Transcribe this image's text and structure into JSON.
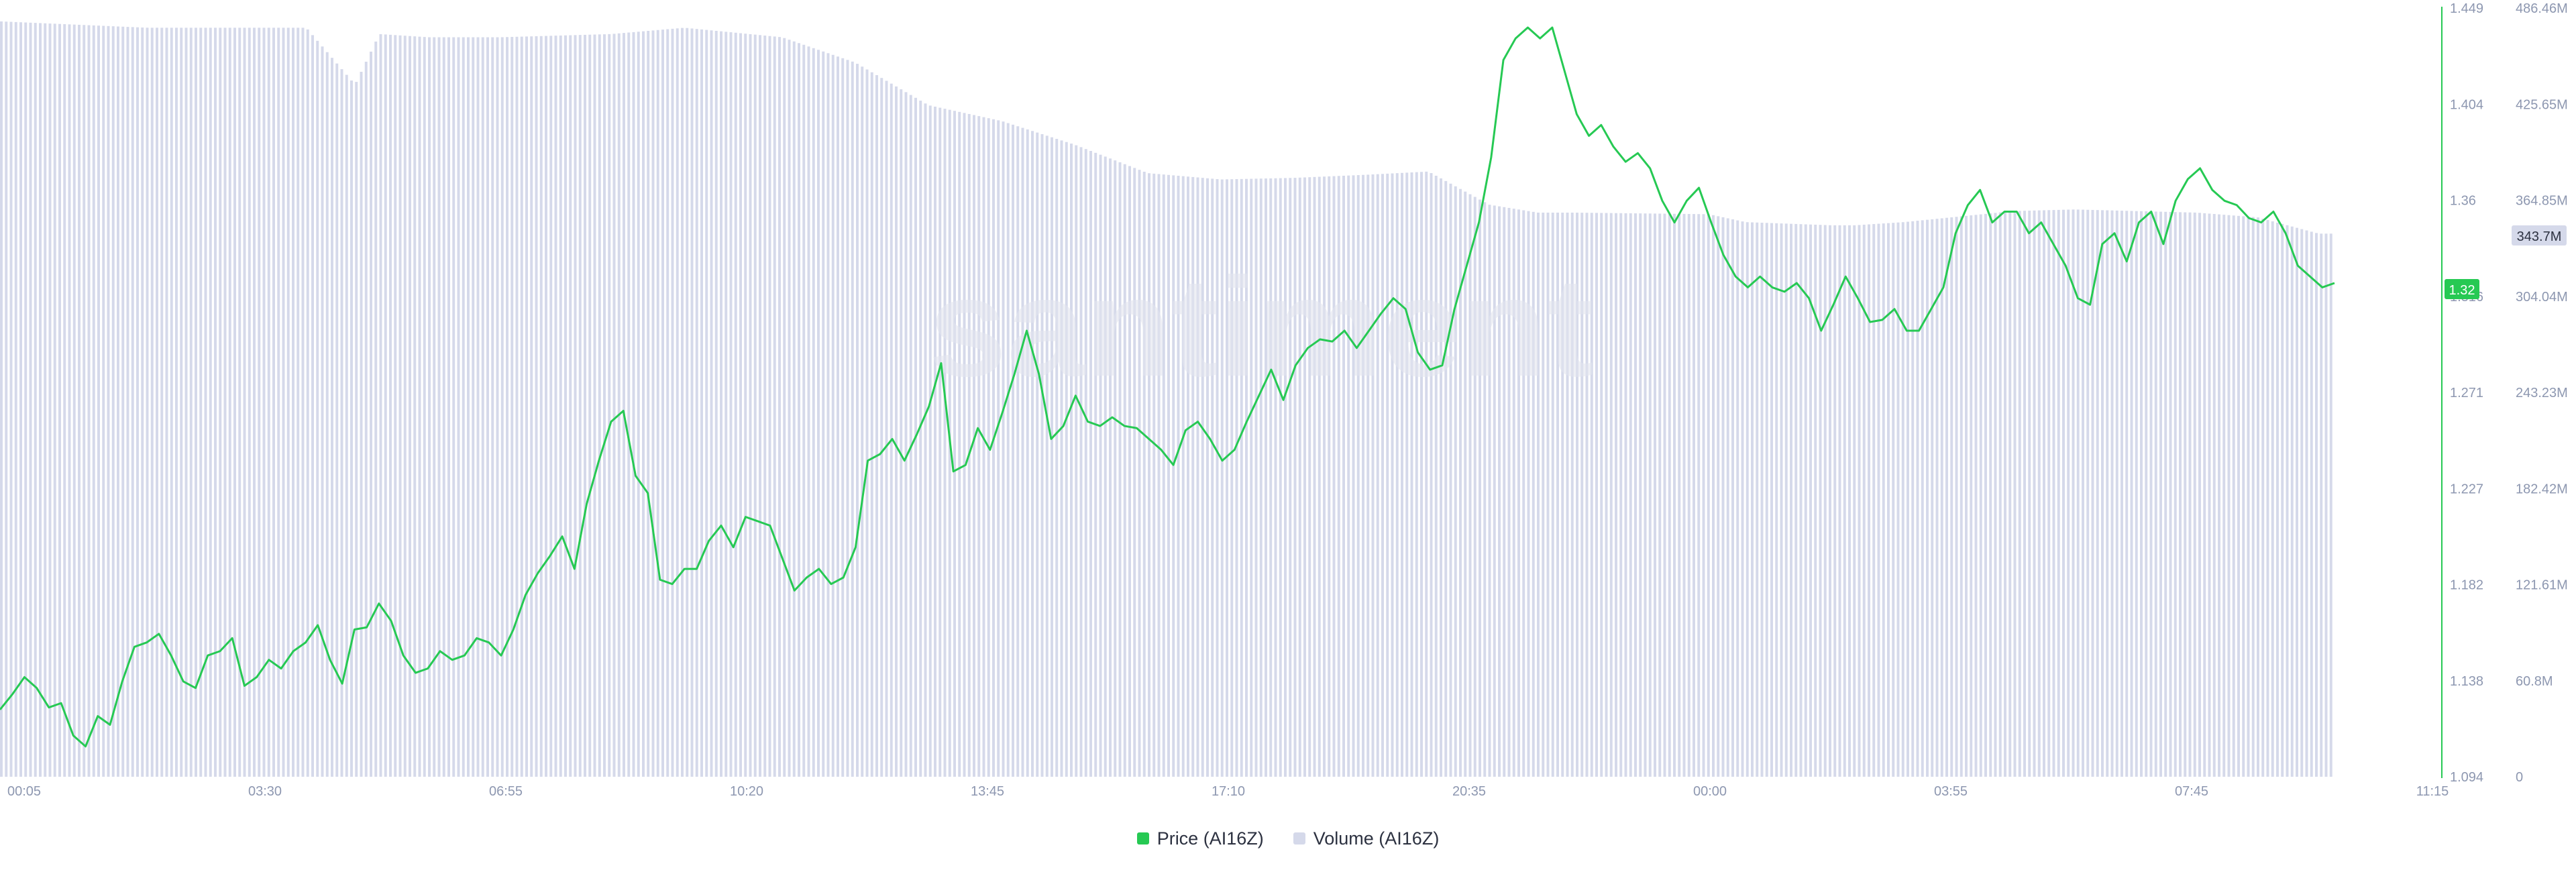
{
  "chart_data": {
    "type": "line",
    "title": "",
    "watermark": "santiment",
    "x_ticks": [
      "00:05",
      "03:30",
      "06:55",
      "10:20",
      "13:45",
      "17:10",
      "20:35",
      "00:00",
      "03:55",
      "07:45",
      "11:15"
    ],
    "left_axis": {
      "label": "Price (AI16Z)",
      "ticks": [
        "1.449",
        "1.404",
        "1.36",
        "1.316",
        "1.271",
        "1.227",
        "1.182",
        "1.138",
        "1.094"
      ],
      "ylim": [
        1.094,
        1.449
      ]
    },
    "right_axis": {
      "label": "Volume (AI16Z)",
      "ticks": [
        "486.46M",
        "425.65M",
        "364.85M",
        "304.04M",
        "243.23M",
        "182.42M",
        "121.61M",
        "60.8M",
        "0"
      ],
      "ylim": [
        0,
        486.46
      ]
    },
    "current_price_label": "1.32",
    "current_volume_label": "343.7M",
    "grid": false,
    "legend_position": "bottom-center",
    "series": [
      {
        "name": "Price (AI16Z)",
        "type": "line",
        "color": "#26c953",
        "points": [
          [
            0,
            1.125
          ],
          [
            1,
            1.132
          ],
          [
            2,
            1.14
          ],
          [
            3,
            1.135
          ],
          [
            4,
            1.126
          ],
          [
            5,
            1.128
          ],
          [
            6,
            1.113
          ],
          [
            7,
            1.108
          ],
          [
            8,
            1.122
          ],
          [
            9,
            1.118
          ],
          [
            10,
            1.138
          ],
          [
            11,
            1.154
          ],
          [
            12,
            1.156
          ],
          [
            13,
            1.16
          ],
          [
            14,
            1.15
          ],
          [
            15,
            1.138
          ],
          [
            16,
            1.135
          ],
          [
            17,
            1.15
          ],
          [
            18,
            1.152
          ],
          [
            19,
            1.158
          ],
          [
            20,
            1.136
          ],
          [
            21,
            1.14
          ],
          [
            22,
            1.148
          ],
          [
            23,
            1.144
          ],
          [
            24,
            1.152
          ],
          [
            25,
            1.156
          ],
          [
            26,
            1.164
          ],
          [
            27,
            1.148
          ],
          [
            28,
            1.137
          ],
          [
            29,
            1.162
          ],
          [
            30,
            1.163
          ],
          [
            31,
            1.174
          ],
          [
            32,
            1.166
          ],
          [
            33,
            1.15
          ],
          [
            34,
            1.142
          ],
          [
            35,
            1.144
          ],
          [
            36,
            1.152
          ],
          [
            37,
            1.148
          ],
          [
            38,
            1.15
          ],
          [
            39,
            1.158
          ],
          [
            40,
            1.156
          ],
          [
            41,
            1.15
          ],
          [
            42,
            1.162
          ],
          [
            43,
            1.178
          ],
          [
            44,
            1.188
          ],
          [
            45,
            1.196
          ],
          [
            46,
            1.205
          ],
          [
            47,
            1.19
          ],
          [
            48,
            1.22
          ],
          [
            49,
            1.24
          ],
          [
            50,
            1.258
          ],
          [
            51,
            1.263
          ],
          [
            52,
            1.233
          ],
          [
            53,
            1.225
          ],
          [
            54,
            1.185
          ],
          [
            55,
            1.183
          ],
          [
            56,
            1.19
          ],
          [
            57,
            1.19
          ],
          [
            58,
            1.203
          ],
          [
            59,
            1.21
          ],
          [
            60,
            1.2
          ],
          [
            61,
            1.214
          ],
          [
            62,
            1.212
          ],
          [
            63,
            1.21
          ],
          [
            64,
            1.195
          ],
          [
            65,
            1.18
          ],
          [
            66,
            1.186
          ],
          [
            67,
            1.19
          ],
          [
            68,
            1.183
          ],
          [
            69,
            1.186
          ],
          [
            70,
            1.2
          ],
          [
            71,
            1.24
          ],
          [
            72,
            1.243
          ],
          [
            73,
            1.25
          ],
          [
            74,
            1.24
          ],
          [
            75,
            1.252
          ],
          [
            76,
            1.265
          ],
          [
            77,
            1.285
          ],
          [
            78,
            1.235
          ],
          [
            79,
            1.238
          ],
          [
            80,
            1.255
          ],
          [
            81,
            1.245
          ],
          [
            82,
            1.262
          ],
          [
            83,
            1.28
          ],
          [
            84,
            1.3
          ],
          [
            85,
            1.28
          ],
          [
            86,
            1.25
          ],
          [
            87,
            1.256
          ],
          [
            88,
            1.27
          ],
          [
            89,
            1.258
          ],
          [
            90,
            1.256
          ],
          [
            91,
            1.26
          ],
          [
            92,
            1.256
          ],
          [
            93,
            1.255
          ],
          [
            94,
            1.25
          ],
          [
            95,
            1.245
          ],
          [
            96,
            1.238
          ],
          [
            97,
            1.254
          ],
          [
            98,
            1.258
          ],
          [
            99,
            1.25
          ],
          [
            100,
            1.24
          ],
          [
            101,
            1.245
          ],
          [
            102,
            1.258
          ],
          [
            103,
            1.27
          ],
          [
            104,
            1.282
          ],
          [
            105,
            1.268
          ],
          [
            106,
            1.284
          ],
          [
            107,
            1.292
          ],
          [
            108,
            1.296
          ],
          [
            109,
            1.295
          ],
          [
            110,
            1.3
          ],
          [
            111,
            1.292
          ],
          [
            112,
            1.3
          ],
          [
            113,
            1.308
          ],
          [
            114,
            1.315
          ],
          [
            115,
            1.31
          ],
          [
            116,
            1.29
          ],
          [
            117,
            1.282
          ],
          [
            118,
            1.284
          ],
          [
            119,
            1.31
          ],
          [
            120,
            1.33
          ],
          [
            121,
            1.35
          ],
          [
            122,
            1.38
          ],
          [
            123,
            1.425
          ],
          [
            124,
            1.435
          ],
          [
            125,
            1.44
          ],
          [
            126,
            1.435
          ],
          [
            127,
            1.44
          ],
          [
            128,
            1.42
          ],
          [
            129,
            1.4
          ],
          [
            130,
            1.39
          ],
          [
            131,
            1.395
          ],
          [
            132,
            1.385
          ],
          [
            133,
            1.378
          ],
          [
            134,
            1.382
          ],
          [
            135,
            1.375
          ],
          [
            136,
            1.36
          ],
          [
            137,
            1.35
          ],
          [
            138,
            1.36
          ],
          [
            139,
            1.366
          ],
          [
            140,
            1.35
          ],
          [
            141,
            1.335
          ],
          [
            142,
            1.325
          ],
          [
            143,
            1.32
          ],
          [
            144,
            1.325
          ],
          [
            145,
            1.32
          ],
          [
            146,
            1.318
          ],
          [
            147,
            1.322
          ],
          [
            148,
            1.315
          ],
          [
            149,
            1.3
          ],
          [
            150,
            1.312
          ],
          [
            151,
            1.325
          ],
          [
            152,
            1.315
          ],
          [
            153,
            1.304
          ],
          [
            154,
            1.305
          ],
          [
            155,
            1.31
          ],
          [
            156,
            1.3
          ],
          [
            157,
            1.3
          ],
          [
            158,
            1.31
          ],
          [
            159,
            1.32
          ],
          [
            160,
            1.345
          ],
          [
            161,
            1.358
          ],
          [
            162,
            1.365
          ],
          [
            163,
            1.35
          ],
          [
            164,
            1.355
          ],
          [
            165,
            1.355
          ],
          [
            166,
            1.345
          ],
          [
            167,
            1.35
          ],
          [
            168,
            1.34
          ],
          [
            169,
            1.33
          ],
          [
            170,
            1.315
          ],
          [
            171,
            1.312
          ],
          [
            172,
            1.34
          ],
          [
            173,
            1.345
          ],
          [
            174,
            1.332
          ],
          [
            175,
            1.35
          ],
          [
            176,
            1.355
          ],
          [
            177,
            1.34
          ],
          [
            178,
            1.36
          ],
          [
            179,
            1.37
          ],
          [
            180,
            1.375
          ],
          [
            181,
            1.365
          ],
          [
            182,
            1.36
          ],
          [
            183,
            1.358
          ],
          [
            184,
            1.352
          ],
          [
            185,
            1.35
          ],
          [
            186,
            1.355
          ],
          [
            187,
            1.345
          ],
          [
            188,
            1.33
          ],
          [
            189,
            1.325
          ],
          [
            190,
            1.32
          ],
          [
            191,
            1.322
          ]
        ]
      },
      {
        "name": "Volume (AI16Z)",
        "type": "bar",
        "color": "#d5d9ea",
        "points": [
          [
            0,
            478
          ],
          [
            12,
            474
          ],
          [
            22,
            474
          ],
          [
            25,
            474
          ],
          [
            29,
            438
          ],
          [
            31,
            470
          ],
          [
            35,
            468
          ],
          [
            41,
            468
          ],
          [
            50,
            470
          ],
          [
            56,
            474
          ],
          [
            64,
            468
          ],
          [
            70,
            452
          ],
          [
            76,
            425
          ],
          [
            82,
            415
          ],
          [
            88,
            400
          ],
          [
            94,
            382
          ],
          [
            100,
            378
          ],
          [
            106,
            379
          ],
          [
            112,
            381
          ],
          [
            117,
            383
          ],
          [
            122,
            362
          ],
          [
            126,
            357
          ],
          [
            129,
            357
          ],
          [
            140,
            356
          ],
          [
            143,
            351
          ],
          [
            150,
            349
          ],
          [
            152,
            349
          ],
          [
            156,
            351
          ],
          [
            165,
            358
          ],
          [
            170,
            359
          ],
          [
            175,
            358
          ],
          [
            180,
            357
          ],
          [
            185,
            354
          ],
          [
            190,
            343.7
          ]
        ]
      }
    ]
  },
  "legend": {
    "price_label": "Price (AI16Z)",
    "volume_label": "Volume (AI16Z)",
    "price_color": "#26c953",
    "volume_color": "#d5d9ea"
  }
}
